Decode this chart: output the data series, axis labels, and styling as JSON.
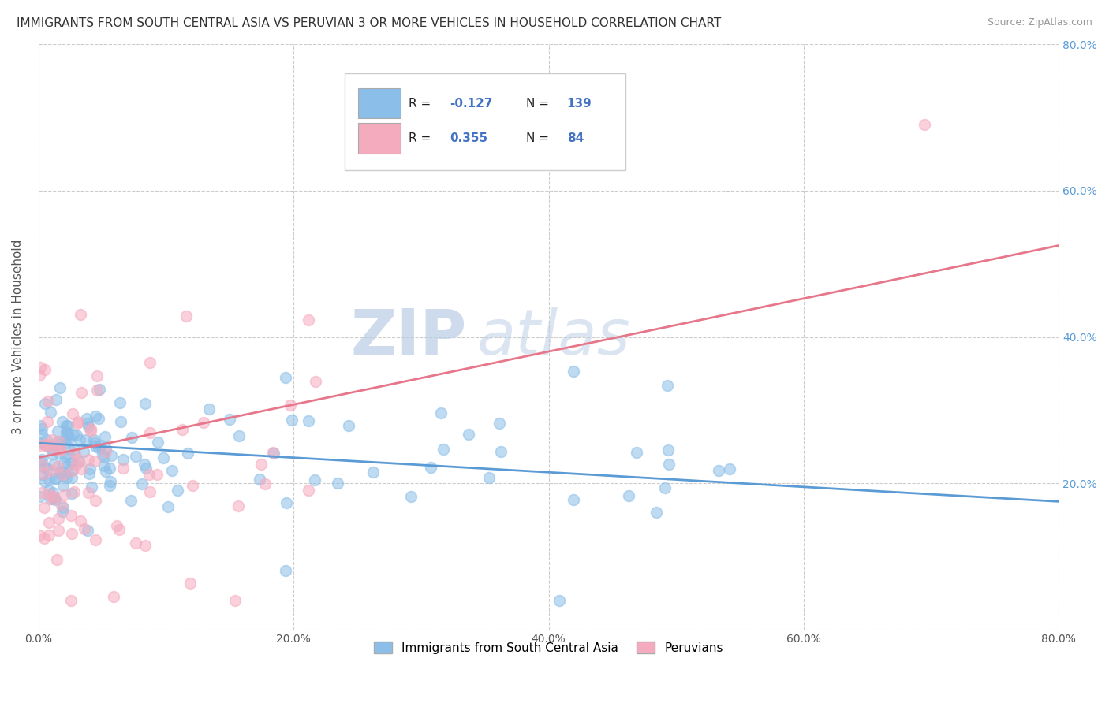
{
  "title": "IMMIGRANTS FROM SOUTH CENTRAL ASIA VS PERUVIAN 3 OR MORE VEHICLES IN HOUSEHOLD CORRELATION CHART",
  "source": "Source: ZipAtlas.com",
  "ylabel": "3 or more Vehicles in Household",
  "xmin": 0.0,
  "xmax": 0.8,
  "ymin": 0.0,
  "ymax": 0.8,
  "xticks": [
    0.0,
    0.2,
    0.4,
    0.6,
    0.8
  ],
  "yticks_right": [
    0.2,
    0.4,
    0.6,
    0.8
  ],
  "xtick_labels": [
    "0.0%",
    "20.0%",
    "40.0%",
    "60.0%",
    "80.0%"
  ],
  "ytick_labels_right": [
    "20.0%",
    "40.0%",
    "60.0%",
    "80.0%"
  ],
  "series1_label": "Immigrants from South Central Asia",
  "series2_label": "Peruvians",
  "series1_color": "#8BBEE8",
  "series2_color": "#F5ABBE",
  "series1_line_color": "#5B9BD5",
  "series2_line_color": "#E8768A",
  "series1_R": -0.127,
  "series1_N": 139,
  "series2_R": 0.355,
  "series2_N": 84,
  "legend_R_color": "#4472C4",
  "watermark_zip": "ZIP",
  "watermark_atlas": "atlas",
  "background_color": "#FFFFFF",
  "grid_color": "#CCCCCC",
  "title_fontsize": 11,
  "axis_label_fontsize": 11,
  "line1_x0": 0.0,
  "line1_y0": 0.255,
  "line1_x1": 0.8,
  "line1_y1": 0.175,
  "line2_x0": 0.0,
  "line2_y0": 0.235,
  "line2_x1": 0.8,
  "line2_y1": 0.525
}
